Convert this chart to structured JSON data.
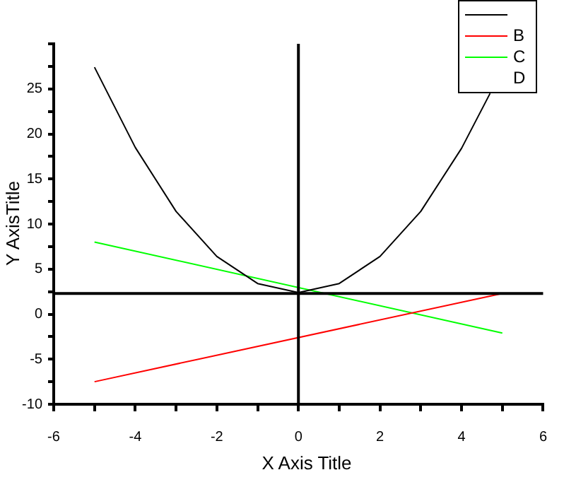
{
  "chart_data": {
    "type": "line",
    "xlabel": "X Axis Title",
    "ylabel": "Y AxisTitle",
    "xlim": [
      -6,
      6
    ],
    "xticks": [
      -6,
      {
        "value": -5,
        "label": null
      },
      -4,
      {
        "value": -3,
        "label": null
      },
      -2,
      {
        "value": -1,
        "label": null
      },
      0,
      {
        "value": 1,
        "label": null
      },
      2,
      {
        "value": 3,
        "label": null
      },
      4,
      {
        "value": 5,
        "label": null
      },
      6
    ],
    "ylim": [
      -10,
      30
    ],
    "yticks": [
      -10,
      {
        "value": -7.5,
        "label": null
      },
      -5,
      {
        "value": -2.5,
        "label": null
      },
      0,
      {
        "value": 2.5,
        "label": null
      },
      5,
      {
        "value": 7.5,
        "label": null
      },
      10,
      {
        "value": 12.5,
        "label": null
      },
      15,
      {
        "value": 17.5,
        "label": null
      },
      20,
      {
        "value": 22.5,
        "label": null
      },
      25,
      {
        "value": 27.5,
        "label": null
      },
      {
        "value": 30,
        "label": null
      }
    ],
    "grid": false,
    "legend": "top right",
    "marker": "none",
    "line_style": "solid",
    "ref_lines": [
      {
        "axis": "y",
        "value": 2.3,
        "color": "#000000"
      },
      {
        "axis": "x",
        "value": 0,
        "color": "#000000"
      }
    ],
    "series": [
      {
        "color": "#000000",
        "x": [
          -5,
          -4,
          -3,
          -2,
          -1,
          0,
          1,
          2,
          3,
          4,
          4.7
        ],
        "values": [
          27.4,
          18.5,
          11.4,
          6.4,
          3.4,
          2.4,
          3.4,
          6.4,
          11.4,
          18.4,
          24.5
        ]
      },
      {
        "name": "B",
        "color": "#ff0000",
        "x": [
          -5,
          5
        ],
        "values": [
          -7.5,
          2.3
        ]
      },
      {
        "name": "C",
        "color": "#00ff00",
        "x": [
          -5,
          5
        ],
        "values": [
          8.0,
          -2.1
        ]
      },
      {
        "name": "D"
      }
    ]
  }
}
